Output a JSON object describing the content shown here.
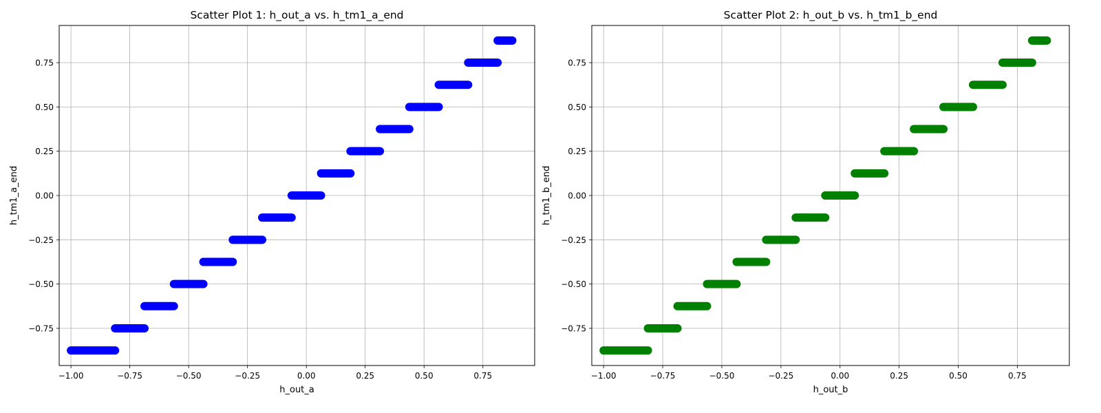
{
  "chart_data": [
    {
      "type": "scatter",
      "title": "Scatter Plot 1: h_out_a vs. h_tm1_a_end",
      "xlabel": "h_out_a",
      "ylabel": "h_tm1_a_end",
      "color": "#0000ff",
      "xlim": [
        -1.05,
        0.97
      ],
      "ylim": [
        -0.96,
        0.96
      ],
      "xticks": [
        -1.0,
        -0.75,
        -0.5,
        -0.25,
        0.0,
        0.25,
        0.5,
        0.75
      ],
      "yticks": [
        -0.75,
        -0.5,
        -0.25,
        0.0,
        0.25,
        0.5,
        0.75
      ],
      "xtick_labels": [
        "−1.00",
        "−0.75",
        "−0.50",
        "−0.25",
        "0.00",
        "0.25",
        "0.50",
        "0.75"
      ],
      "ytick_labels": [
        "−0.75",
        "−0.50",
        "−0.25",
        "0.00",
        "0.25",
        "0.50",
        "0.75"
      ],
      "grid": true,
      "segments": [
        {
          "y": -0.875,
          "x_min": -1.0,
          "x_max": -0.8125
        },
        {
          "y": -0.75,
          "x_min": -0.8125,
          "x_max": -0.6875
        },
        {
          "y": -0.625,
          "x_min": -0.6875,
          "x_max": -0.5625
        },
        {
          "y": -0.5,
          "x_min": -0.5625,
          "x_max": -0.4375
        },
        {
          "y": -0.375,
          "x_min": -0.4375,
          "x_max": -0.3125
        },
        {
          "y": -0.25,
          "x_min": -0.3125,
          "x_max": -0.1875
        },
        {
          "y": -0.125,
          "x_min": -0.1875,
          "x_max": -0.0625
        },
        {
          "y": 0.0,
          "x_min": -0.0625,
          "x_max": 0.0625
        },
        {
          "y": 0.125,
          "x_min": 0.0625,
          "x_max": 0.1875
        },
        {
          "y": 0.25,
          "x_min": 0.1875,
          "x_max": 0.3125
        },
        {
          "y": 0.375,
          "x_min": 0.3125,
          "x_max": 0.4375
        },
        {
          "y": 0.5,
          "x_min": 0.4375,
          "x_max": 0.5625
        },
        {
          "y": 0.625,
          "x_min": 0.5625,
          "x_max": 0.6875
        },
        {
          "y": 0.75,
          "x_min": 0.6875,
          "x_max": 0.8125
        },
        {
          "y": 0.875,
          "x_min": 0.8125,
          "x_max": 0.875
        }
      ]
    },
    {
      "type": "scatter",
      "title": "Scatter Plot 2: h_out_b vs. h_tm1_b_end",
      "xlabel": "h_out_b",
      "ylabel": "h_tm1_b_end",
      "color": "#008000",
      "xlim": [
        -1.05,
        0.97
      ],
      "ylim": [
        -0.96,
        0.96
      ],
      "xticks": [
        -1.0,
        -0.75,
        -0.5,
        -0.25,
        0.0,
        0.25,
        0.5,
        0.75
      ],
      "yticks": [
        -0.75,
        -0.5,
        -0.25,
        0.0,
        0.25,
        0.5,
        0.75
      ],
      "xtick_labels": [
        "−1.00",
        "−0.75",
        "−0.50",
        "−0.25",
        "0.00",
        "0.25",
        "0.50",
        "0.75"
      ],
      "ytick_labels": [
        "−0.75",
        "−0.50",
        "−0.25",
        "0.00",
        "0.25",
        "0.50",
        "0.75"
      ],
      "grid": true,
      "segments": [
        {
          "y": -0.875,
          "x_min": -1.0,
          "x_max": -0.8125
        },
        {
          "y": -0.75,
          "x_min": -0.8125,
          "x_max": -0.6875
        },
        {
          "y": -0.625,
          "x_min": -0.6875,
          "x_max": -0.5625
        },
        {
          "y": -0.5,
          "x_min": -0.5625,
          "x_max": -0.4375
        },
        {
          "y": -0.375,
          "x_min": -0.4375,
          "x_max": -0.3125
        },
        {
          "y": -0.25,
          "x_min": -0.3125,
          "x_max": -0.1875
        },
        {
          "y": -0.125,
          "x_min": -0.1875,
          "x_max": -0.0625
        },
        {
          "y": 0.0,
          "x_min": -0.0625,
          "x_max": 0.0625
        },
        {
          "y": 0.125,
          "x_min": 0.0625,
          "x_max": 0.1875
        },
        {
          "y": 0.25,
          "x_min": 0.1875,
          "x_max": 0.3125
        },
        {
          "y": 0.375,
          "x_min": 0.3125,
          "x_max": 0.4375
        },
        {
          "y": 0.5,
          "x_min": 0.4375,
          "x_max": 0.5625
        },
        {
          "y": 0.625,
          "x_min": 0.5625,
          "x_max": 0.6875
        },
        {
          "y": 0.75,
          "x_min": 0.6875,
          "x_max": 0.8125
        },
        {
          "y": 0.875,
          "x_min": 0.8125,
          "x_max": 0.875
        }
      ]
    }
  ]
}
